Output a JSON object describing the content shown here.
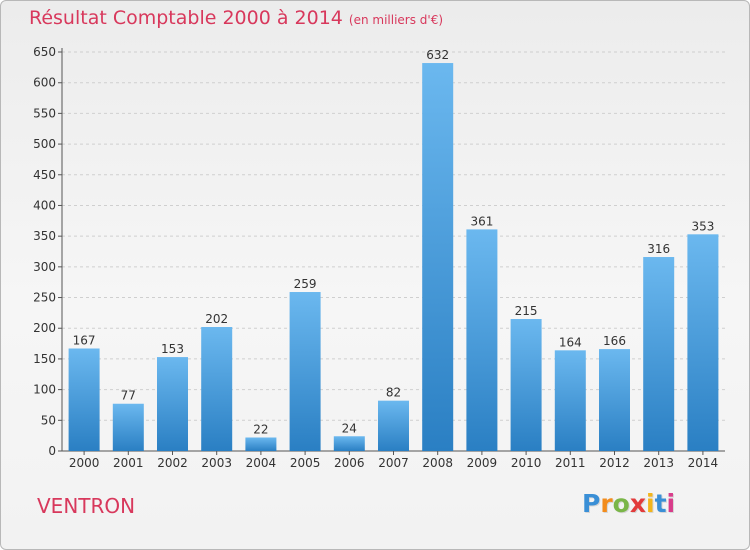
{
  "header": {
    "title": "Résultat Comptable 2000 à 2014",
    "subtitle": "(en milliers d'€)"
  },
  "footer": {
    "town": "VENTRON",
    "logo": {
      "text": "Proxiti",
      "letter_colors": [
        "#3a8fd6",
        "#f28c1c",
        "#7ab648",
        "#e23b3b",
        "#f2b51c",
        "#3a8fd6",
        "#d83c8a"
      ]
    }
  },
  "colors": {
    "bar_light": "#6bb8ef",
    "bar_dark": "#2a7fc3",
    "title": "#d8385c"
  },
  "chart_data": {
    "type": "bar",
    "title": "Résultat Comptable 2000 à 2014",
    "subtitle": "(en milliers d'€)",
    "categories": [
      "2000",
      "2001",
      "2002",
      "2003",
      "2004",
      "2005",
      "2006",
      "2007",
      "2008",
      "2009",
      "2010",
      "2011",
      "2012",
      "2013",
      "2014"
    ],
    "values": [
      167,
      77,
      153,
      202,
      22,
      259,
      24,
      82,
      632,
      361,
      215,
      164,
      166,
      316,
      353
    ],
    "ylim": [
      0,
      650
    ],
    "yticks": [
      0,
      50,
      100,
      150,
      200,
      250,
      300,
      350,
      400,
      450,
      500,
      550,
      600,
      650
    ],
    "grid": true,
    "data_labels": true,
    "xlabel": "",
    "ylabel": ""
  }
}
